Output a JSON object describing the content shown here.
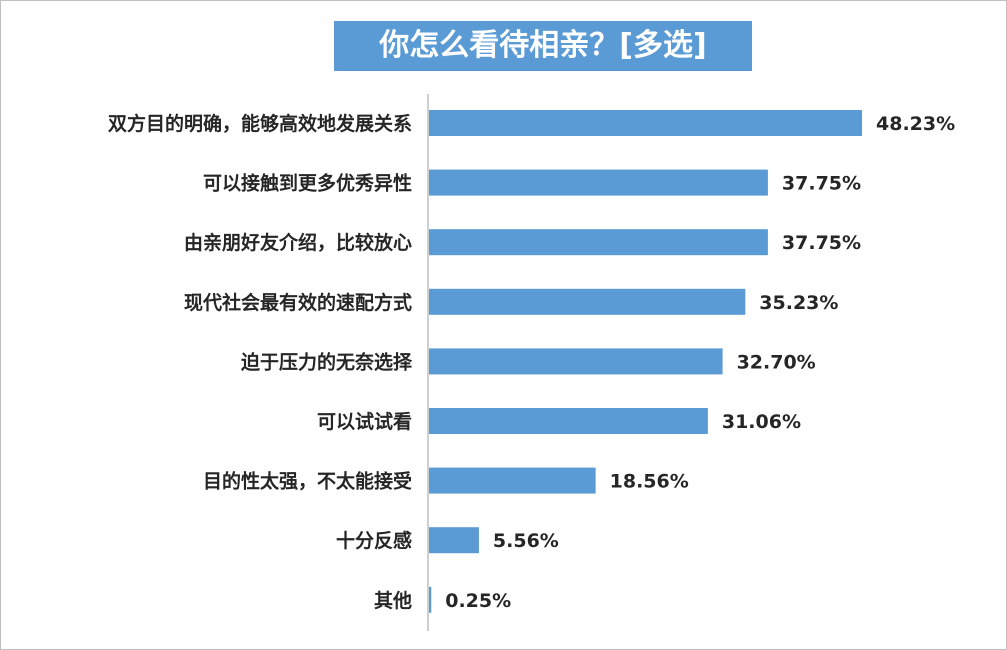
{
  "chart_data": {
    "type": "bar",
    "orientation": "horizontal",
    "title": "你怎么看待相亲？[多选]",
    "categories": [
      "双方目的明确，能够高效地发展关系",
      "可以接触到更多优秀异性",
      "由亲朋好友介绍，比较放心",
      "现代社会最有效的速配方式",
      "迫于压力的无奈选择",
      "可以试试看",
      "目的性太强，不太能接受",
      "十分反感",
      "其他"
    ],
    "values": [
      48.23,
      37.75,
      37.75,
      35.23,
      32.7,
      31.06,
      18.56,
      5.56,
      0.25
    ],
    "value_labels": [
      "48.23%",
      "37.75%",
      "37.75%",
      "35.23%",
      "32.70%",
      "31.06%",
      "18.56%",
      "5.56%",
      "0.25%"
    ],
    "xlim": [
      0,
      50
    ],
    "grid": false,
    "legend": "none",
    "bar_color": "#5b9bd5",
    "title_background": "#5b9bd5",
    "title_color": "#ffffff"
  }
}
